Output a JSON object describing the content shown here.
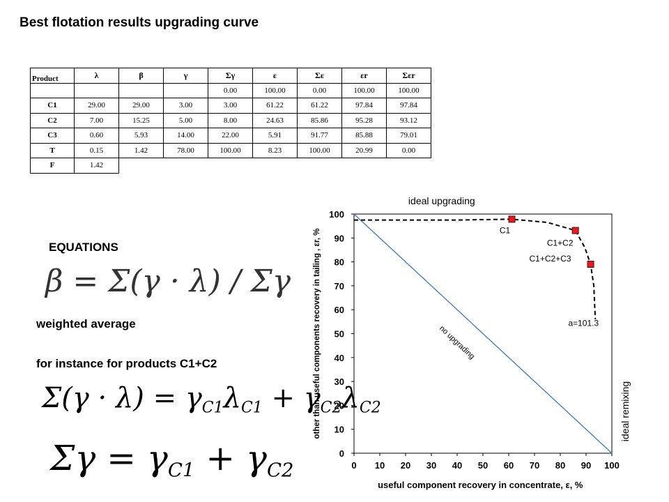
{
  "title": "Best flotation results  upgrading curve",
  "table": {
    "headers": [
      "Product",
      "λ",
      "β",
      "γ",
      "Σγ",
      "ε",
      "Σε",
      "εr",
      "Σεr"
    ],
    "rows": [
      [
        "",
        "",
        "",
        "",
        "0.00",
        "100.00",
        "0.00",
        "100.00",
        "100.00"
      ],
      [
        "C1",
        "29.00",
        "29.00",
        "3.00",
        "3.00",
        "61.22",
        "61.22",
        "97.84",
        "97.84"
      ],
      [
        "C2",
        "7.00",
        "15.25",
        "5.00",
        "8.00",
        "24.63",
        "85.86",
        "95.28",
        "93.12"
      ],
      [
        "C3",
        "0.60",
        "5.93",
        "14.00",
        "22.00",
        "5.91",
        "91.77",
        "85.88",
        "79.01"
      ],
      [
        "T",
        "0.15",
        "1.42",
        "78.00",
        "100.00",
        "8.23",
        "100.00",
        "20.99",
        "0.00"
      ],
      [
        "F",
        "1.42"
      ]
    ]
  },
  "equations_heading": "EQUATIONS",
  "equation1": "β = Σ(γ · λ) / Σγ",
  "weighted_average": "weighted average",
  "for_instance": "for instance for  products C1+C2",
  "equation2": "Σ(γ · λ) = γC1λC1 + γC2λC2",
  "equation3": "Σγ = γC1 + γC2",
  "chart_data": {
    "type": "line",
    "title": "ideal upgrading",
    "xlabel": "useful component  recovery in concentrate, ε, %",
    "ylabel": "other than useful components recovery in tailing , εr, %",
    "right_label": "ideal remixing",
    "xlim": [
      0,
      100
    ],
    "ylim": [
      0,
      100
    ],
    "x_ticks": [
      "0",
      "10",
      "20",
      "30",
      "40",
      "50",
      "60",
      "70",
      "80",
      "90",
      "100"
    ],
    "y_ticks": [
      "0",
      "10",
      "20",
      "30",
      "40",
      "50",
      "60",
      "70",
      "80",
      "90",
      "100"
    ],
    "diagonal": {
      "label": "no upgrading",
      "points": [
        [
          0,
          100
        ],
        [
          100,
          0
        ]
      ],
      "color": "#4a7ebb"
    },
    "curve": {
      "label": "a=101.3",
      "points": [
        [
          0,
          97.5
        ],
        [
          40,
          97.5
        ],
        [
          61.22,
          97.84
        ],
        [
          75,
          96.5
        ],
        [
          85.86,
          93.12
        ],
        [
          89.5,
          86
        ],
        [
          91.77,
          79.01
        ],
        [
          93,
          70
        ],
        [
          93.4,
          60
        ],
        [
          93.6,
          56
        ]
      ]
    },
    "markers": [
      {
        "label": "C1",
        "x": 61.22,
        "y": 97.84
      },
      {
        "label": "C1+C2",
        "x": 85.86,
        "y": 93.12
      },
      {
        "label": "C1+C2+C3",
        "x": 91.77,
        "y": 79.01
      }
    ],
    "marker_color": "#e31b23"
  }
}
